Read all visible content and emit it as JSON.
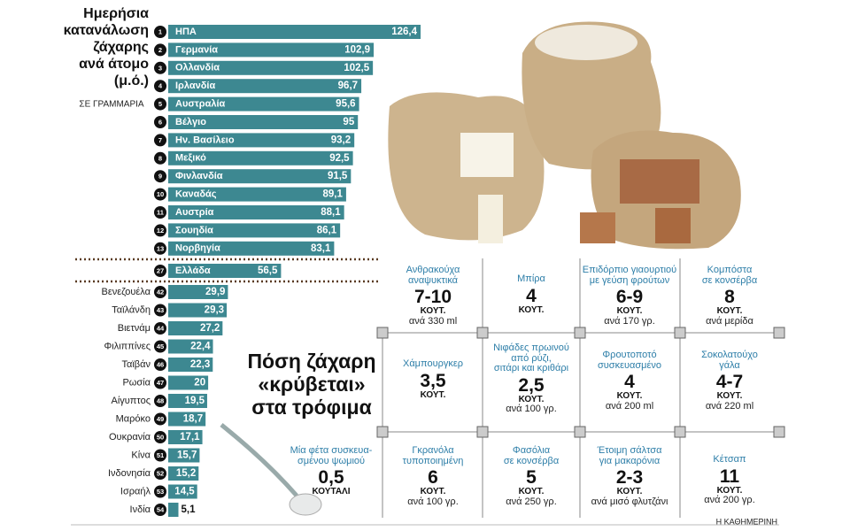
{
  "title_lines": [
    "Ημερήσια",
    "κατανάλωση",
    "ζάχαρης",
    "ανά άτομο",
    "(μ.ό.)"
  ],
  "subtitle": "ΣΕ ΓΡΑΜΜΑΡΙΑ",
  "chart_data": {
    "type": "bar",
    "orientation": "horizontal",
    "color": "#3d8891",
    "ranks": [
      "1",
      "2",
      "3",
      "4",
      "5",
      "6",
      "7",
      "8",
      "9",
      "10",
      "11",
      "12",
      "13",
      "27",
      "42",
      "43",
      "44",
      "45",
      "46",
      "47",
      "48",
      "49",
      "50",
      "51",
      "52",
      "53",
      "54"
    ],
    "categories": [
      "ΗΠΑ",
      "Γερμανία",
      "Ολλανδία",
      "Ιρλανδία",
      "Αυστραλία",
      "Βέλγιο",
      "Ην. Βασίλειο",
      "Μεξικό",
      "Φινλανδία",
      "Καναδάς",
      "Αυστρία",
      "Σουηδία",
      "Νορβηγία",
      "Ελλάδα",
      "Βενεζουέλα",
      "Ταϊλάνδη",
      "Βιετνάμ",
      "Φιλιππίνες",
      "Ταϊβάν",
      "Ρωσία",
      "Αίγυπτος",
      "Μαρόκο",
      "Ουκρανία",
      "Κίνα",
      "Ινδονησία",
      "Ισραήλ",
      "Ινδία"
    ],
    "values": [
      126.4,
      102.9,
      102.5,
      96.7,
      95.6,
      95,
      93.2,
      92.5,
      91.5,
      89.1,
      88.1,
      86.1,
      83.1,
      56.5,
      29.9,
      29.3,
      27.2,
      22.4,
      22.3,
      20,
      19.5,
      18.7,
      17.1,
      15.7,
      15.2,
      14.5,
      5.1
    ],
    "value_labels": [
      "126,4",
      "102,9",
      "102,5",
      "96,7",
      "95,6",
      "95",
      "93,2",
      "92,5",
      "91,5",
      "89,1",
      "88,1",
      "86,1",
      "83,1",
      "56,5",
      "29,9",
      "29,3",
      "27,2",
      "22,4",
      "22,3",
      "20",
      "19,5",
      "18,7",
      "17,1",
      "15,7",
      "15,2",
      "14,5",
      "5,1"
    ]
  },
  "foods": {
    "title_lines": [
      "Πόση ζάχαρη",
      "«κρύβεται»",
      "στα τρόφιμα"
    ],
    "items": [
      {
        "name": [
          "Ανθρακούχα",
          "αναψυκτικά"
        ],
        "amount": "7-10",
        "unit": "ΚΟΥΤ.",
        "per": "ανά 330 ml"
      },
      {
        "name": [
          "Μπίρα"
        ],
        "amount": "4",
        "unit": "ΚΟΥΤ."
      },
      {
        "name": [
          "Επιδόρπιο γιαουρτιού",
          "με γεύση φρούτων"
        ],
        "amount": "6-9",
        "unit": "ΚΟΥΤ.",
        "per": "ανά 170 γρ."
      },
      {
        "name": [
          "Κομπόστα",
          "σε κονσέρβα"
        ],
        "amount": "8",
        "unit": "ΚΟΥΤ.",
        "per": "ανά μερίδα"
      },
      {
        "name": [
          "Χάμπουργκερ"
        ],
        "amount": "3,5",
        "unit": "ΚΟΥΤ."
      },
      {
        "name": [
          "Νιφάδες πρωινού",
          "από ρύζι,",
          "σιτάρι και κριθάρι"
        ],
        "amount": "2,5",
        "unit": "ΚΟΥΤ.",
        "per": "ανά 100 γρ."
      },
      {
        "name": [
          "Φρουτοποτό",
          "συσκευασμένο"
        ],
        "amount": "4",
        "unit": "ΚΟΥΤ.",
        "per": "ανά 200 ml"
      },
      {
        "name": [
          "Σοκολατούχο",
          "γάλα"
        ],
        "amount": "4-7",
        "unit": "ΚΟΥΤ.",
        "per": "ανά 220 ml"
      },
      {
        "name": [
          "Γκρανόλα",
          "τυποποιημένη"
        ],
        "amount": "6",
        "unit": "ΚΟΥΤ.",
        "per": "ανά 100 γρ."
      },
      {
        "name": [
          "Φασόλια",
          "σε κονσέρβα"
        ],
        "amount": "5",
        "unit": "ΚΟΥΤ.",
        "per": "ανά 250 γρ."
      },
      {
        "name": [
          "Έτοιμη σάλτσα",
          "για μακαρόνια"
        ],
        "amount": "2-3",
        "unit": "ΚΟΥΤ.",
        "per": "ανά μισό φλυτζάνι"
      },
      {
        "name": [
          "Κέτσαπ"
        ],
        "amount": "11",
        "unit": "ΚΟΥΤ.",
        "per": "ανά 200 γρ."
      }
    ],
    "bread": {
      "name": [
        "Μία φέτα συσκευα-",
        "σμένου ψωμιού"
      ],
      "amount": "0,5",
      "unit": "ΚΟΥΤΑΛΙ"
    }
  },
  "credit": "Η ΚΑΘΗΜΕΡΙΝΗ"
}
